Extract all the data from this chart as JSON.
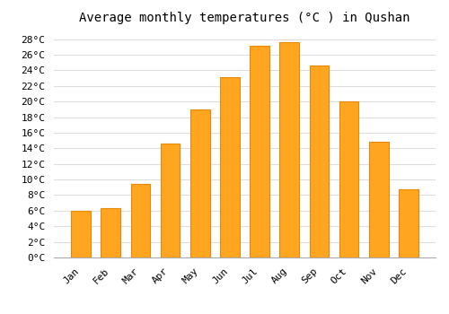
{
  "title": "Average monthly temperatures (°C ) in Qushan",
  "months": [
    "Jan",
    "Feb",
    "Mar",
    "Apr",
    "May",
    "Jun",
    "Jul",
    "Aug",
    "Sep",
    "Oct",
    "Nov",
    "Dec"
  ],
  "values": [
    6.0,
    6.3,
    9.4,
    14.6,
    19.0,
    23.1,
    27.2,
    27.6,
    24.6,
    20.0,
    14.8,
    8.7
  ],
  "bar_color": "#FFA520",
  "bar_edge_color": "#E8890A",
  "ylim": [
    0,
    29
  ],
  "yticks": [
    0,
    2,
    4,
    6,
    8,
    10,
    12,
    14,
    16,
    18,
    20,
    22,
    24,
    26,
    28
  ],
  "background_color": "#ffffff",
  "grid_color": "#dddddd",
  "title_fontsize": 10,
  "tick_fontsize": 8,
  "font_family": "monospace"
}
